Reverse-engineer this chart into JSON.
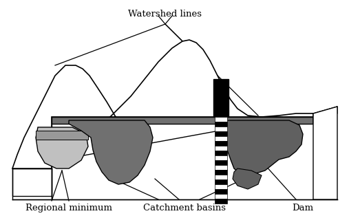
{
  "background_color": "#ffffff",
  "label_watershed_lines": "Watershed lines",
  "label_regional_minimum": "Regional minimum",
  "label_catchment_basins": "Catchment basins",
  "label_dam": "Dam",
  "font_size_labels": 9.5,
  "fig_width": 5.07,
  "fig_height": 3.17,
  "dpi": 100,
  "colors": {
    "black": "#000000",
    "light_gray": "#c0c0c0",
    "medium_gray": "#999999",
    "dark_gray": "#707070",
    "darker_gray": "#606060",
    "white": "#ffffff"
  }
}
